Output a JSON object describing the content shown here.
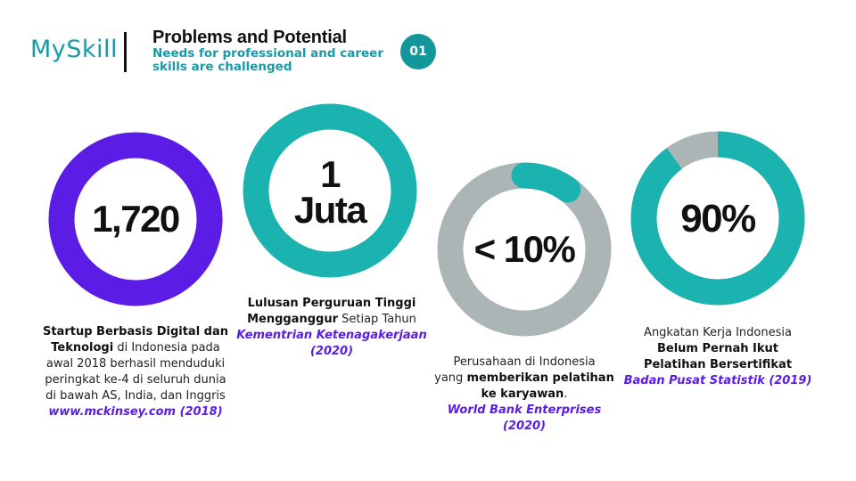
{
  "header": {
    "logo": "MySkill",
    "title": "Problems and Potential",
    "subtitle": "Needs for professional and career skills are challenged",
    "badge": "01"
  },
  "colors": {
    "purple": "#5b1ce6",
    "teal": "#1ab3b0",
    "gray": "#abb5b5",
    "accent": "#1a9aa8"
  },
  "stats": [
    {
      "value": "1,720",
      "ring_fill_percent": 100,
      "ring_color": "purple",
      "caption": [
        [
          {
            "t": "Startup Berbasis Digital dan",
            "b": true
          }
        ],
        [
          {
            "t": "Teknologi",
            "b": true
          },
          {
            "t": " di Indonesia pada"
          }
        ],
        [
          {
            "t": "awal 2018 berhasil menduduki"
          }
        ],
        [
          {
            "t": "peringkat ke-4 di seluruh dunia"
          }
        ],
        [
          {
            "t": "di bawah AS, India, dan Inggris"
          }
        ],
        [
          {
            "t": "www.mckinsey.com (2018)",
            "s": true
          }
        ]
      ]
    },
    {
      "value": "1 Juta",
      "value_lines": [
        "1",
        "Juta"
      ],
      "ring_fill_percent": 100,
      "ring_color": "teal",
      "caption": [
        [
          {
            "t": "Lulusan Perguruan Tinggi",
            "b": true
          }
        ],
        [
          {
            "t": "Mengganggur",
            "b": true
          },
          {
            "t": " Setiap Tahun"
          }
        ],
        [
          {
            "t": "Kementrian Ketenagakerjaan",
            "s": true
          }
        ],
        [
          {
            "t": "(2020)",
            "s": true
          }
        ]
      ]
    },
    {
      "value": "< 10%",
      "ring_fill_percent": 10,
      "ring_color": "teal",
      "caption": [
        [
          {
            "t": "Perusahaan di Indonesia"
          }
        ],
        [
          {
            "t": "yang "
          },
          {
            "t": "memberikan pelatihan",
            "b": true
          }
        ],
        [
          {
            "t": "ke karyawan",
            "b": true
          },
          {
            "t": "."
          }
        ],
        [
          {
            "t": "World Bank Enterprises",
            "s": true
          }
        ],
        [
          {
            "t": "(2020)",
            "s": true
          }
        ]
      ]
    },
    {
      "value": "90%",
      "ring_fill_percent": 90,
      "ring_color": "teal",
      "caption": [
        [
          {
            "t": "Angkatan Kerja Indonesia"
          }
        ],
        [
          {
            "t": "Belum Pernah Ikut",
            "b": true
          }
        ],
        [
          {
            "t": "Pelatihan Bersertifikat",
            "b": true
          }
        ],
        [
          {
            "t": "Badan Pusat Statistik (2019)",
            "s": true
          }
        ]
      ]
    }
  ]
}
